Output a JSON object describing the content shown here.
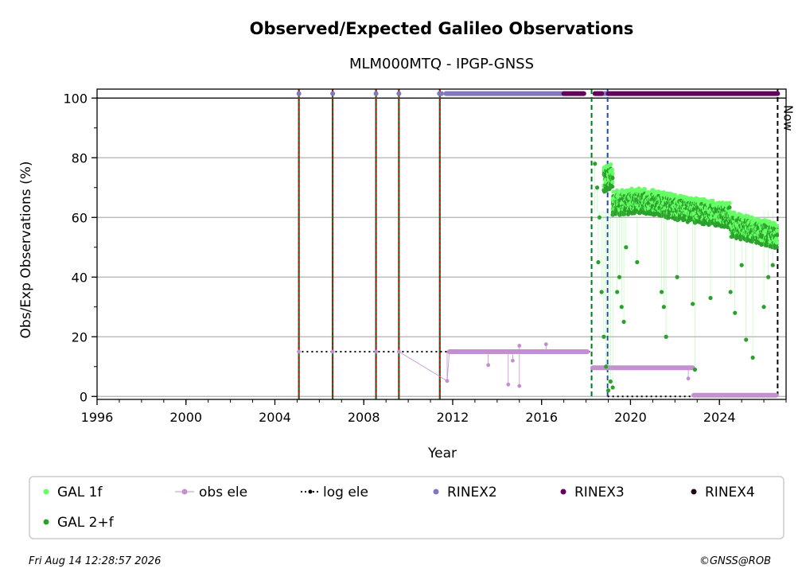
{
  "chart_data": {
    "type": "scatter",
    "title": "Observed/Expected Galileo Observations",
    "subtitle": "MLM000MTQ - IPGP-GNSS",
    "xlabel": "Year",
    "ylabel": "Obs/Exp Observations (%)",
    "xlim": [
      1996.0,
      2027.0
    ],
    "ylim": [
      -1,
      103
    ],
    "xticks": [
      "1996",
      "2000",
      "2004",
      "2008",
      "2012",
      "2016",
      "2020",
      "2024"
    ],
    "yticks": [
      "0",
      "20",
      "40",
      "60",
      "80",
      "100"
    ],
    "grid": "horizontal",
    "now_label": "Now",
    "now_year": 2026.62,
    "colors": {
      "gal_1f": "#66ff66",
      "gal_2f": "#2ca02c",
      "obs_ele": "#c38fd1",
      "log_ele": "#000000",
      "rinex2": "#8079c0",
      "rinex3": "#66005e",
      "rinex4": "#1a0a1a",
      "event_green": "#007a1f",
      "event_red": "#cc0000",
      "event_blue": "#1f4e9c"
    },
    "events_red_green": [
      2005.08,
      2006.6,
      2008.55,
      2009.58,
      2011.42
    ],
    "events_green": [
      2018.25
    ],
    "events_blue": [
      2018.97
    ],
    "rinex_bar": {
      "y": 101.5,
      "rinex2_points": [
        2005.08,
        2006.6,
        2008.55,
        2009.58
      ],
      "rinex2_span": [
        2011.7,
        2017.0
      ],
      "rinex3_spans": [
        [
          2017.0,
          2017.9
        ],
        [
          2018.4,
          2018.7
        ],
        [
          2019.0,
          2026.62
        ]
      ],
      "rinex2_bits": [
        [
          2011.4,
          2011.5
        ],
        [
          2018.7,
          2019.0
        ]
      ]
    },
    "log_ele": [
      {
        "x": [
          2005.0,
          2018.25
        ],
        "y": [
          15,
          15
        ]
      },
      {
        "x": [
          2018.25,
          2018.97
        ],
        "y": [
          10,
          10
        ]
      },
      {
        "x": [
          2018.97,
          2026.62
        ],
        "y": [
          0,
          0
        ]
      }
    ],
    "obs_ele": {
      "points": [
        [
          2005.08,
          15
        ],
        [
          2006.6,
          15
        ],
        [
          2008.55,
          15
        ],
        [
          2009.58,
          15
        ],
        [
          2011.75,
          5.2
        ],
        [
          2013.6,
          10.5
        ],
        [
          2014.5,
          4
        ],
        [
          2014.7,
          12
        ],
        [
          2015.0,
          3.5
        ],
        [
          2015.0,
          17
        ],
        [
          2016.2,
          17.5
        ],
        [
          2022.6,
          6
        ]
      ],
      "segments": [
        {
          "x0": 2011.85,
          "x1": 2018.05,
          "y": 15
        },
        {
          "x0": 2018.3,
          "x1": 2022.8,
          "y": 9.6
        },
        {
          "x0": 2022.85,
          "x1": 2026.55,
          "y": 0.4
        }
      ]
    },
    "gal_2f": {
      "segments": [
        {
          "x0": 2018.8,
          "x1": 2019.2,
          "y0": 72,
          "y1": 73
        },
        {
          "x0": 2019.2,
          "x1": 2020.5,
          "y0": 64,
          "y1": 65
        },
        {
          "x0": 2020.5,
          "x1": 2022.5,
          "y0": 65,
          "y1": 62
        },
        {
          "x0": 2022.5,
          "x1": 2024.5,
          "y0": 62,
          "y1": 60
        },
        {
          "x0": 2024.5,
          "x1": 2026.6,
          "y0": 57,
          "y1": 53
        }
      ],
      "outliers": [
        [
          2018.4,
          78
        ],
        [
          2018.5,
          70
        ],
        [
          2018.6,
          60
        ],
        [
          2018.55,
          45
        ],
        [
          2018.7,
          35
        ],
        [
          2018.8,
          20
        ],
        [
          2018.9,
          10
        ],
        [
          2019.0,
          2
        ],
        [
          2019.1,
          5
        ],
        [
          2019.2,
          3
        ],
        [
          2019.4,
          35
        ],
        [
          2019.5,
          40
        ],
        [
          2019.6,
          30
        ],
        [
          2019.7,
          25
        ],
        [
          2019.8,
          50
        ],
        [
          2020.3,
          45
        ],
        [
          2021.4,
          35
        ],
        [
          2021.5,
          30
        ],
        [
          2021.6,
          20
        ],
        [
          2022.1,
          40
        ],
        [
          2022.8,
          31
        ],
        [
          2022.9,
          9
        ],
        [
          2023.6,
          33
        ],
        [
          2024.5,
          35
        ],
        [
          2024.7,
          28
        ],
        [
          2025.2,
          19
        ],
        [
          2025.0,
          44
        ],
        [
          2025.5,
          13
        ],
        [
          2026.0,
          30
        ],
        [
          2026.2,
          40
        ],
        [
          2026.4,
          44
        ]
      ]
    },
    "legend": {
      "placement": "bottom",
      "items": [
        {
          "label": "GAL 1f",
          "key": "gal_1f",
          "style": "dot"
        },
        {
          "label": "obs ele",
          "key": "obs_ele",
          "style": "line-dot"
        },
        {
          "label": "log ele",
          "key": "log_ele",
          "style": "dotted-line"
        },
        {
          "label": "RINEX2",
          "key": "rinex2",
          "style": "dot"
        },
        {
          "label": "RINEX3",
          "key": "rinex3",
          "style": "dot"
        },
        {
          "label": "RINEX4",
          "key": "rinex4",
          "style": "dot"
        },
        {
          "label": "GAL 2+f",
          "key": "gal_2f",
          "style": "dot"
        }
      ]
    },
    "footer_left": "Fri Aug 14 12:28:57 2026",
    "footer_right": "©GNSS@ROB"
  }
}
